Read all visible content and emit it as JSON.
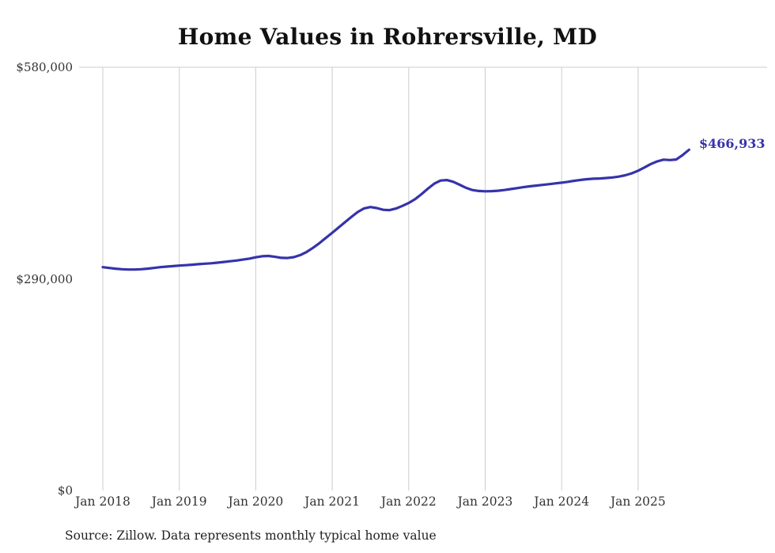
{
  "chart_data": {
    "type": "line",
    "title": "Home Values in Rohrersville, MD",
    "x_start": "Jan 2018",
    "x_end": "Sep 2025",
    "x_interval": "monthly",
    "x_tick_labels": [
      "Jan 2018",
      "Jan 2019",
      "Jan 2020",
      "Jan 2021",
      "Jan 2022",
      "Jan 2023",
      "Jan 2024",
      "Jan 2025"
    ],
    "y_ticks": [
      {
        "label": "$580,000",
        "value": 580000
      },
      {
        "label": "$290,000",
        "value": 290000
      },
      {
        "label": "$0",
        "value": 0
      }
    ],
    "ylim": [
      0,
      580000
    ],
    "values": [
      306000,
      305000,
      304000,
      303200,
      302800,
      302800,
      303200,
      304000,
      305000,
      306000,
      306800,
      307400,
      308200,
      308800,
      309400,
      310200,
      310800,
      311400,
      312200,
      313200,
      314200,
      315200,
      316400,
      317800,
      319600,
      321000,
      321400,
      320200,
      318800,
      318600,
      319800,
      322600,
      327000,
      332600,
      339000,
      346000,
      353200,
      360400,
      367600,
      374800,
      381600,
      386600,
      388400,
      387000,
      384600,
      384200,
      386400,
      390000,
      394000,
      399200,
      406000,
      413600,
      420400,
      424800,
      425400,
      423000,
      419000,
      414800,
      411800,
      410400,
      410000,
      410200,
      410800,
      411800,
      413000,
      414400,
      415600,
      416800,
      417800,
      418800,
      419800,
      420800,
      421800,
      423000,
      424400,
      425600,
      426600,
      427200,
      427600,
      428200,
      429000,
      430200,
      432000,
      434600,
      438200,
      442600,
      447400,
      451000,
      453400,
      452800,
      453600,
      459800,
      466933
    ],
    "latest_value": 466933,
    "latest_value_label": "$466,933",
    "grid": "vertical",
    "legend_position": "none",
    "line_color": "#3633aa",
    "grid_color": "#cccccc"
  },
  "source_note": "Source: Zillow. Data represents monthly typical home value",
  "colors": {
    "title_text": "#111111",
    "axis_text": "#333333",
    "source_text": "#222222"
  }
}
